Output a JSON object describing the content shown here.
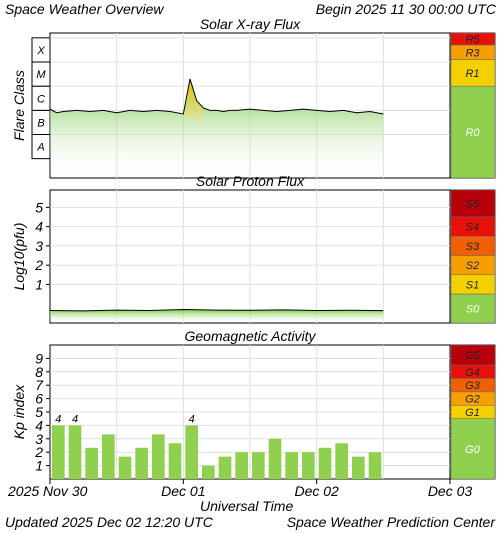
{
  "header": {
    "title": "Space Weather Overview",
    "begin": "Begin 2025 11 30 00:00 UTC"
  },
  "footer": {
    "updated": "Updated 2025 Dec 02 12:20 UTC",
    "center": "Space Weather Prediction Center"
  },
  "colors": {
    "green": "#8fd14f",
    "yellow": "#f5d000",
    "orange": "#f5a000",
    "red_orange": "#f06000",
    "red": "#e8100a",
    "dark_red": "#b8000c"
  },
  "chart_data": [
    {
      "type": "area",
      "title": "Solar X-ray Flux",
      "ylabel": "Flare Class",
      "y_classes": [
        "A",
        "B",
        "C",
        "M",
        "X"
      ],
      "ylim_log_wm2": [
        -8.8,
        -2.8
      ],
      "scale_labels": [
        {
          "label": "R5",
          "level": "extreme"
        },
        {
          "label": "R3",
          "level": "strong"
        },
        {
          "label": "R1",
          "level": "minor"
        },
        {
          "label": "R0",
          "level": "none"
        }
      ],
      "series": [
        {
          "x_days": [
            0.0,
            0.05,
            0.1,
            0.2,
            0.3,
            0.4,
            0.5,
            0.6,
            0.7,
            0.8,
            0.9,
            1.0,
            1.05,
            1.1,
            1.15,
            1.2,
            1.25,
            1.3,
            1.35,
            1.4,
            1.5,
            1.6,
            1.7,
            1.8,
            1.9,
            2.0,
            2.1,
            2.2,
            2.3,
            2.4,
            2.5
          ],
          "log_flux_wm2": [
            -5.95,
            -6.1,
            -6.05,
            -6.0,
            -6.05,
            -6.0,
            -6.1,
            -6.0,
            -6.05,
            -6.0,
            -6.05,
            -6.15,
            -4.7,
            -5.6,
            -5.9,
            -6.0,
            -6.0,
            -6.05,
            -6.0,
            -6.0,
            -5.95,
            -6.0,
            -6.05,
            -6.0,
            -5.95,
            -6.0,
            -6.05,
            -6.0,
            -6.1,
            -6.05,
            -6.15
          ]
        }
      ]
    },
    {
      "type": "area",
      "title": "Solar Proton Flux",
      "ylabel": "Log10(pfu)",
      "yticks": [
        "1",
        "2",
        "3",
        "4",
        "5"
      ],
      "ylim_log_pfu": [
        -1.0,
        5.9
      ],
      "scale_labels": [
        {
          "label": "S5",
          "level": "extreme"
        },
        {
          "label": "S4",
          "level": "severe"
        },
        {
          "label": "S3",
          "level": "strong"
        },
        {
          "label": "S2",
          "level": "moderate"
        },
        {
          "label": "S1",
          "level": "minor"
        },
        {
          "label": "S0",
          "level": "none"
        }
      ],
      "series": [
        {
          "x_days": [
            0.0,
            0.25,
            0.5,
            0.75,
            1.0,
            1.25,
            1.5,
            1.75,
            2.0,
            2.25,
            2.5
          ],
          "log_pfu": [
            -0.35,
            -0.37,
            -0.33,
            -0.35,
            -0.3,
            -0.33,
            -0.34,
            -0.32,
            -0.35,
            -0.34,
            -0.36
          ]
        }
      ]
    },
    {
      "type": "bar",
      "title": "Geomagnetic Activity",
      "ylabel": "Kp index",
      "yticks": [
        "1",
        "2",
        "3",
        "4",
        "5",
        "6",
        "7",
        "8",
        "9"
      ],
      "ylim": [
        0,
        10
      ],
      "scale_labels": [
        {
          "label": "G5",
          "level": "extreme"
        },
        {
          "label": "G4",
          "level": "severe"
        },
        {
          "label": "G3",
          "level": "strong"
        },
        {
          "label": "G2",
          "level": "moderate"
        },
        {
          "label": "G1",
          "level": "minor"
        },
        {
          "label": "G0",
          "level": "none"
        }
      ],
      "bar_width_days": 0.125,
      "values": [
        4.0,
        4.0,
        2.33,
        3.33,
        1.67,
        2.33,
        3.33,
        2.67,
        4.0,
        1.0,
        1.67,
        2.0,
        2.0,
        3.0,
        2.0,
        2.0,
        2.33,
        2.67,
        1.67,
        2.0
      ],
      "value_labels": [
        "4",
        "4",
        "",
        "",
        "",
        "",
        "",
        "",
        "4",
        "",
        "",
        "",
        "",
        "",
        "",
        "",
        "",
        "",
        "",
        ""
      ]
    }
  ],
  "x_axis": {
    "xlim_days": [
      0,
      3
    ],
    "tick_labels": [
      "2025 Nov 30",
      "Dec 01",
      "Dec 02",
      "Dec 03"
    ],
    "xlabel": "Universal Time"
  }
}
